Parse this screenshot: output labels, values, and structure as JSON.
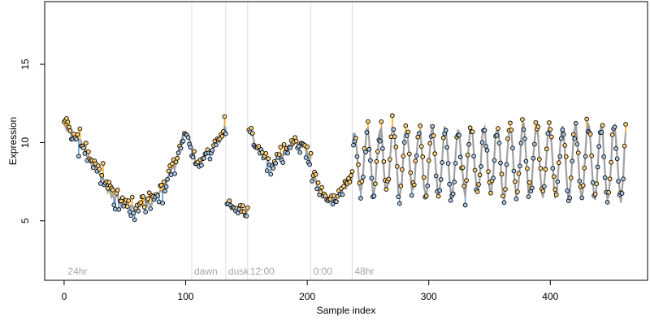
{
  "chart_data": {
    "type": "line",
    "title": "",
    "xlabel": "Sample index",
    "ylabel": "Expression",
    "xlim": [
      -16,
      480
    ],
    "ylim": [
      1.2,
      19.0
    ],
    "x_ticks": [
      0,
      100,
      200,
      300,
      400
    ],
    "y_ticks": [
      5,
      10,
      15
    ],
    "grid": false,
    "colors": {
      "fitted_line": "#a0a0a0",
      "residual_above": "#ffa500",
      "residual_below": "#5c9bd5",
      "point_fill": "#ffd27a",
      "point_fill_below": "#a8c8e8",
      "point_stroke": "#000000",
      "divider": "#dcdcdc",
      "annotation": "#a6a6a6"
    },
    "dividers": [
      {
        "x": 105,
        "label": "dawn"
      },
      {
        "x": 133,
        "label": "dusk"
      },
      {
        "x": 151,
        "label": "12:00"
      },
      {
        "x": 203,
        "label": "0:00"
      },
      {
        "x": 237,
        "label": "48hr"
      }
    ],
    "start_label": "24hr",
    "start_label_x": 3,
    "series": [
      {
        "segments": [
          {
            "x": [
              0,
              10,
              25,
              40,
              50,
              60,
              70,
              80,
              90,
              99
            ],
            "y": [
              11.0,
              10.3,
              8.5,
              6.6,
              6.0,
              5.8,
              6.2,
              6.9,
              8.4,
              10.6
            ],
            "noise": 0.55
          },
          {
            "x": [
              100,
              110,
              120,
              128,
              133
            ],
            "y": [
              10.7,
              8.7,
              9.4,
              10.2,
              10.9
            ],
            "noise": 0.35
          },
          {
            "x": [
              134,
              140,
              148,
              151
            ],
            "y": [
              6.2,
              5.9,
              5.6,
              5.6
            ],
            "noise": 0.25
          },
          {
            "x": [
              152,
              160,
              170,
              180,
              190,
              198,
              203
            ],
            "y": [
              10.8,
              9.6,
              8.6,
              9.2,
              10.0,
              9.8,
              9.0
            ],
            "noise": 0.45
          },
          {
            "x": [
              204,
              212,
              220,
              230,
              237
            ],
            "y": [
              7.8,
              6.8,
              6.2,
              7.0,
              7.6
            ],
            "noise": 0.35
          }
        ],
        "oscillation": {
          "x_start": 238,
          "x_end": 462,
          "period": 10.7,
          "mean": 8.8,
          "amplitude": 2.0,
          "amp_growth": 0.2,
          "noise": 0.5
        }
      }
    ]
  }
}
